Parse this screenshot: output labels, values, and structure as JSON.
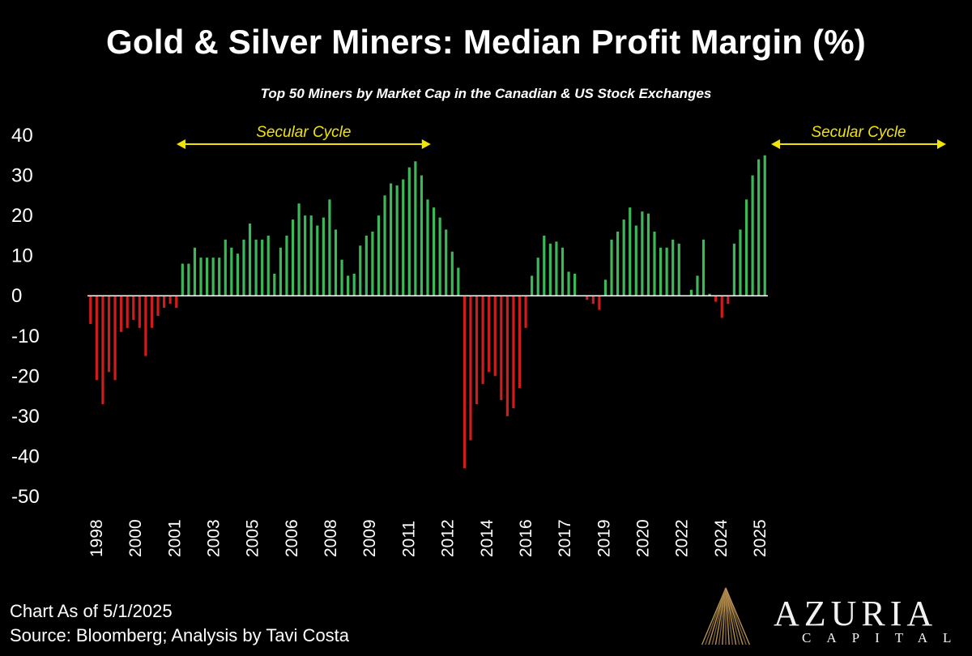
{
  "title": "Gold & Silver Miners: Median Profit Margin (%)",
  "subtitle": "Top 50 Miners by Market Cap in the Canadian & US Stock Exchanges",
  "footer": {
    "date": "Chart As of 5/1/2025",
    "source": "Source: Bloomberg; Analysis by Tavi Costa"
  },
  "logo": {
    "name": "AZURIA",
    "sub": "CAPITAL",
    "icon": "fan-lines-logo-icon"
  },
  "colors": {
    "positive": "#3db858",
    "negative": "#d01c1c",
    "annotation": "#f2e205",
    "background": "#000000",
    "axis": "#ffffff"
  },
  "chart_data": {
    "type": "bar",
    "ylim": [
      -50,
      40
    ],
    "yticks": [
      40,
      30,
      20,
      10,
      0,
      -10,
      -20,
      -30,
      -40,
      -50
    ],
    "xtick_labels": [
      "1998",
      "2000",
      "2001",
      "2003",
      "2005",
      "2006",
      "2008",
      "2009",
      "2011",
      "2012",
      "2014",
      "2016",
      "2017",
      "2019",
      "2020",
      "2022",
      "2024",
      "2025"
    ],
    "values": [
      -7,
      -21,
      -27,
      -19,
      -21,
      -9,
      -8,
      -6,
      -8,
      -15,
      -8,
      -5,
      -3,
      -2,
      -3,
      8,
      8,
      12,
      9.5,
      9.5,
      9.5,
      9.5,
      14,
      12,
      10.5,
      14,
      18,
      14,
      14,
      15,
      5.5,
      12,
      15,
      19,
      23,
      20,
      20,
      17.5,
      19.5,
      24,
      16.5,
      9,
      5,
      5.5,
      12.5,
      15,
      16,
      20,
      25,
      28,
      27.5,
      29,
      32,
      33.5,
      30,
      24,
      22,
      19.5,
      16.5,
      11,
      7,
      -43,
      -36,
      -27,
      -22,
      -19,
      -20,
      -26,
      -30,
      -28,
      -23,
      -8,
      5,
      9.5,
      15,
      13,
      13.5,
      12,
      6,
      5.5,
      0,
      -1,
      -2,
      -3.5,
      4,
      14,
      16,
      19,
      22,
      17.5,
      21,
      20.5,
      16,
      12,
      12,
      14,
      13,
      0,
      1.5,
      5,
      14,
      0.5,
      -1.5,
      -5.5,
      -2,
      13,
      16.5,
      24,
      30,
      34,
      35
    ],
    "annotations": [
      {
        "label": "Secular Cycle",
        "from_index": 14,
        "to_index": 55
      },
      {
        "label": "Secular Cycle",
        "from_index": 111,
        "to_index": 152
      }
    ],
    "grid": false,
    "legend": "none"
  }
}
